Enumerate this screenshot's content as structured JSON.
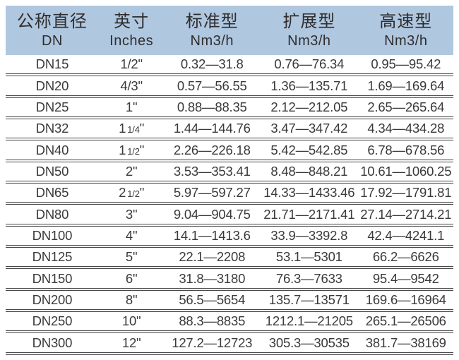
{
  "table": {
    "inch_mark": "\"",
    "colors": {
      "header_bg": "#b0c7e0",
      "body_text": "#3a3a3a",
      "separator_line": "#474747"
    },
    "columns": [
      {
        "title": "公称直径",
        "subtitle": "DN"
      },
      {
        "title": "英寸",
        "subtitle": "Inches"
      },
      {
        "title": "标准型",
        "subtitle": "Nm3/h"
      },
      {
        "title": "扩展型",
        "subtitle": "Nm3/h"
      },
      {
        "title": "高速型",
        "subtitle": "Nm3/h"
      }
    ],
    "rows": [
      {
        "dn": "DN15",
        "inches_main": "1/2",
        "inches_frac": "",
        "standard": "0.32—31.8",
        "extended": "0.76—76.34",
        "high_speed": "0.95—95.42"
      },
      {
        "dn": "DN20",
        "inches_main": "4/3",
        "inches_frac": "",
        "standard": "0.57—56.55",
        "extended": "1.36—135.71",
        "high_speed": "1.69—169.64"
      },
      {
        "dn": "DN25",
        "inches_main": "1",
        "inches_frac": "",
        "standard": "0.88—88.35",
        "extended": "2.12—212.05",
        "high_speed": "2.65—265.64"
      },
      {
        "dn": "DN32",
        "inches_main": "1",
        "inches_frac": "1/4",
        "standard": "1.44—144.76",
        "extended": "3.47—347.42",
        "high_speed": "4.34—434.28"
      },
      {
        "dn": "DN40",
        "inches_main": "1",
        "inches_frac": "1/2",
        "standard": "2.26—226.18",
        "extended": "5.42—542.85",
        "high_speed": "6.78—678.56"
      },
      {
        "dn": "DN50",
        "inches_main": "2",
        "inches_frac": "",
        "standard": "3.53—353.41",
        "extended": "8.48—848.21",
        "high_speed": "10.61—1060.25"
      },
      {
        "dn": "DN65",
        "inches_main": "2",
        "inches_frac": "1/2",
        "standard": "5.97—597.27",
        "extended": "14.33—1433.46",
        "high_speed": "17.92—1791.81"
      },
      {
        "dn": "DN80",
        "inches_main": "3",
        "inches_frac": "",
        "standard": "9.04—904.75",
        "extended": "21.71—2171.41",
        "high_speed": "27.14—2714.21"
      },
      {
        "dn": "DN100",
        "inches_main": "4",
        "inches_frac": "",
        "standard": "14.1—1413.6",
        "extended": "33.9—3392.8",
        "high_speed": "42.4—4241.1"
      },
      {
        "dn": "DN125",
        "inches_main": "5",
        "inches_frac": "",
        "standard": "22.1—2208",
        "extended": "53.1—5301",
        "high_speed": "66.2—6626"
      },
      {
        "dn": "DN150",
        "inches_main": "6",
        "inches_frac": "",
        "standard": "31.8—3180",
        "extended": "76.3—7633",
        "high_speed": "95.4—9542"
      },
      {
        "dn": "DN200",
        "inches_main": "8",
        "inches_frac": "",
        "standard": "56.5—5654",
        "extended": "135.7—13571",
        "high_speed": "169.6—16964"
      },
      {
        "dn": "DN250",
        "inches_main": "10",
        "inches_frac": "",
        "standard": "88.3—8835",
        "extended": "1212.1—21205",
        "high_speed": "265.1—26506"
      },
      {
        "dn": "DN300",
        "inches_main": "12",
        "inches_frac": "",
        "standard": "127.2—12723",
        "extended": "305.3—30535",
        "high_speed": "381.7—38169"
      }
    ]
  }
}
